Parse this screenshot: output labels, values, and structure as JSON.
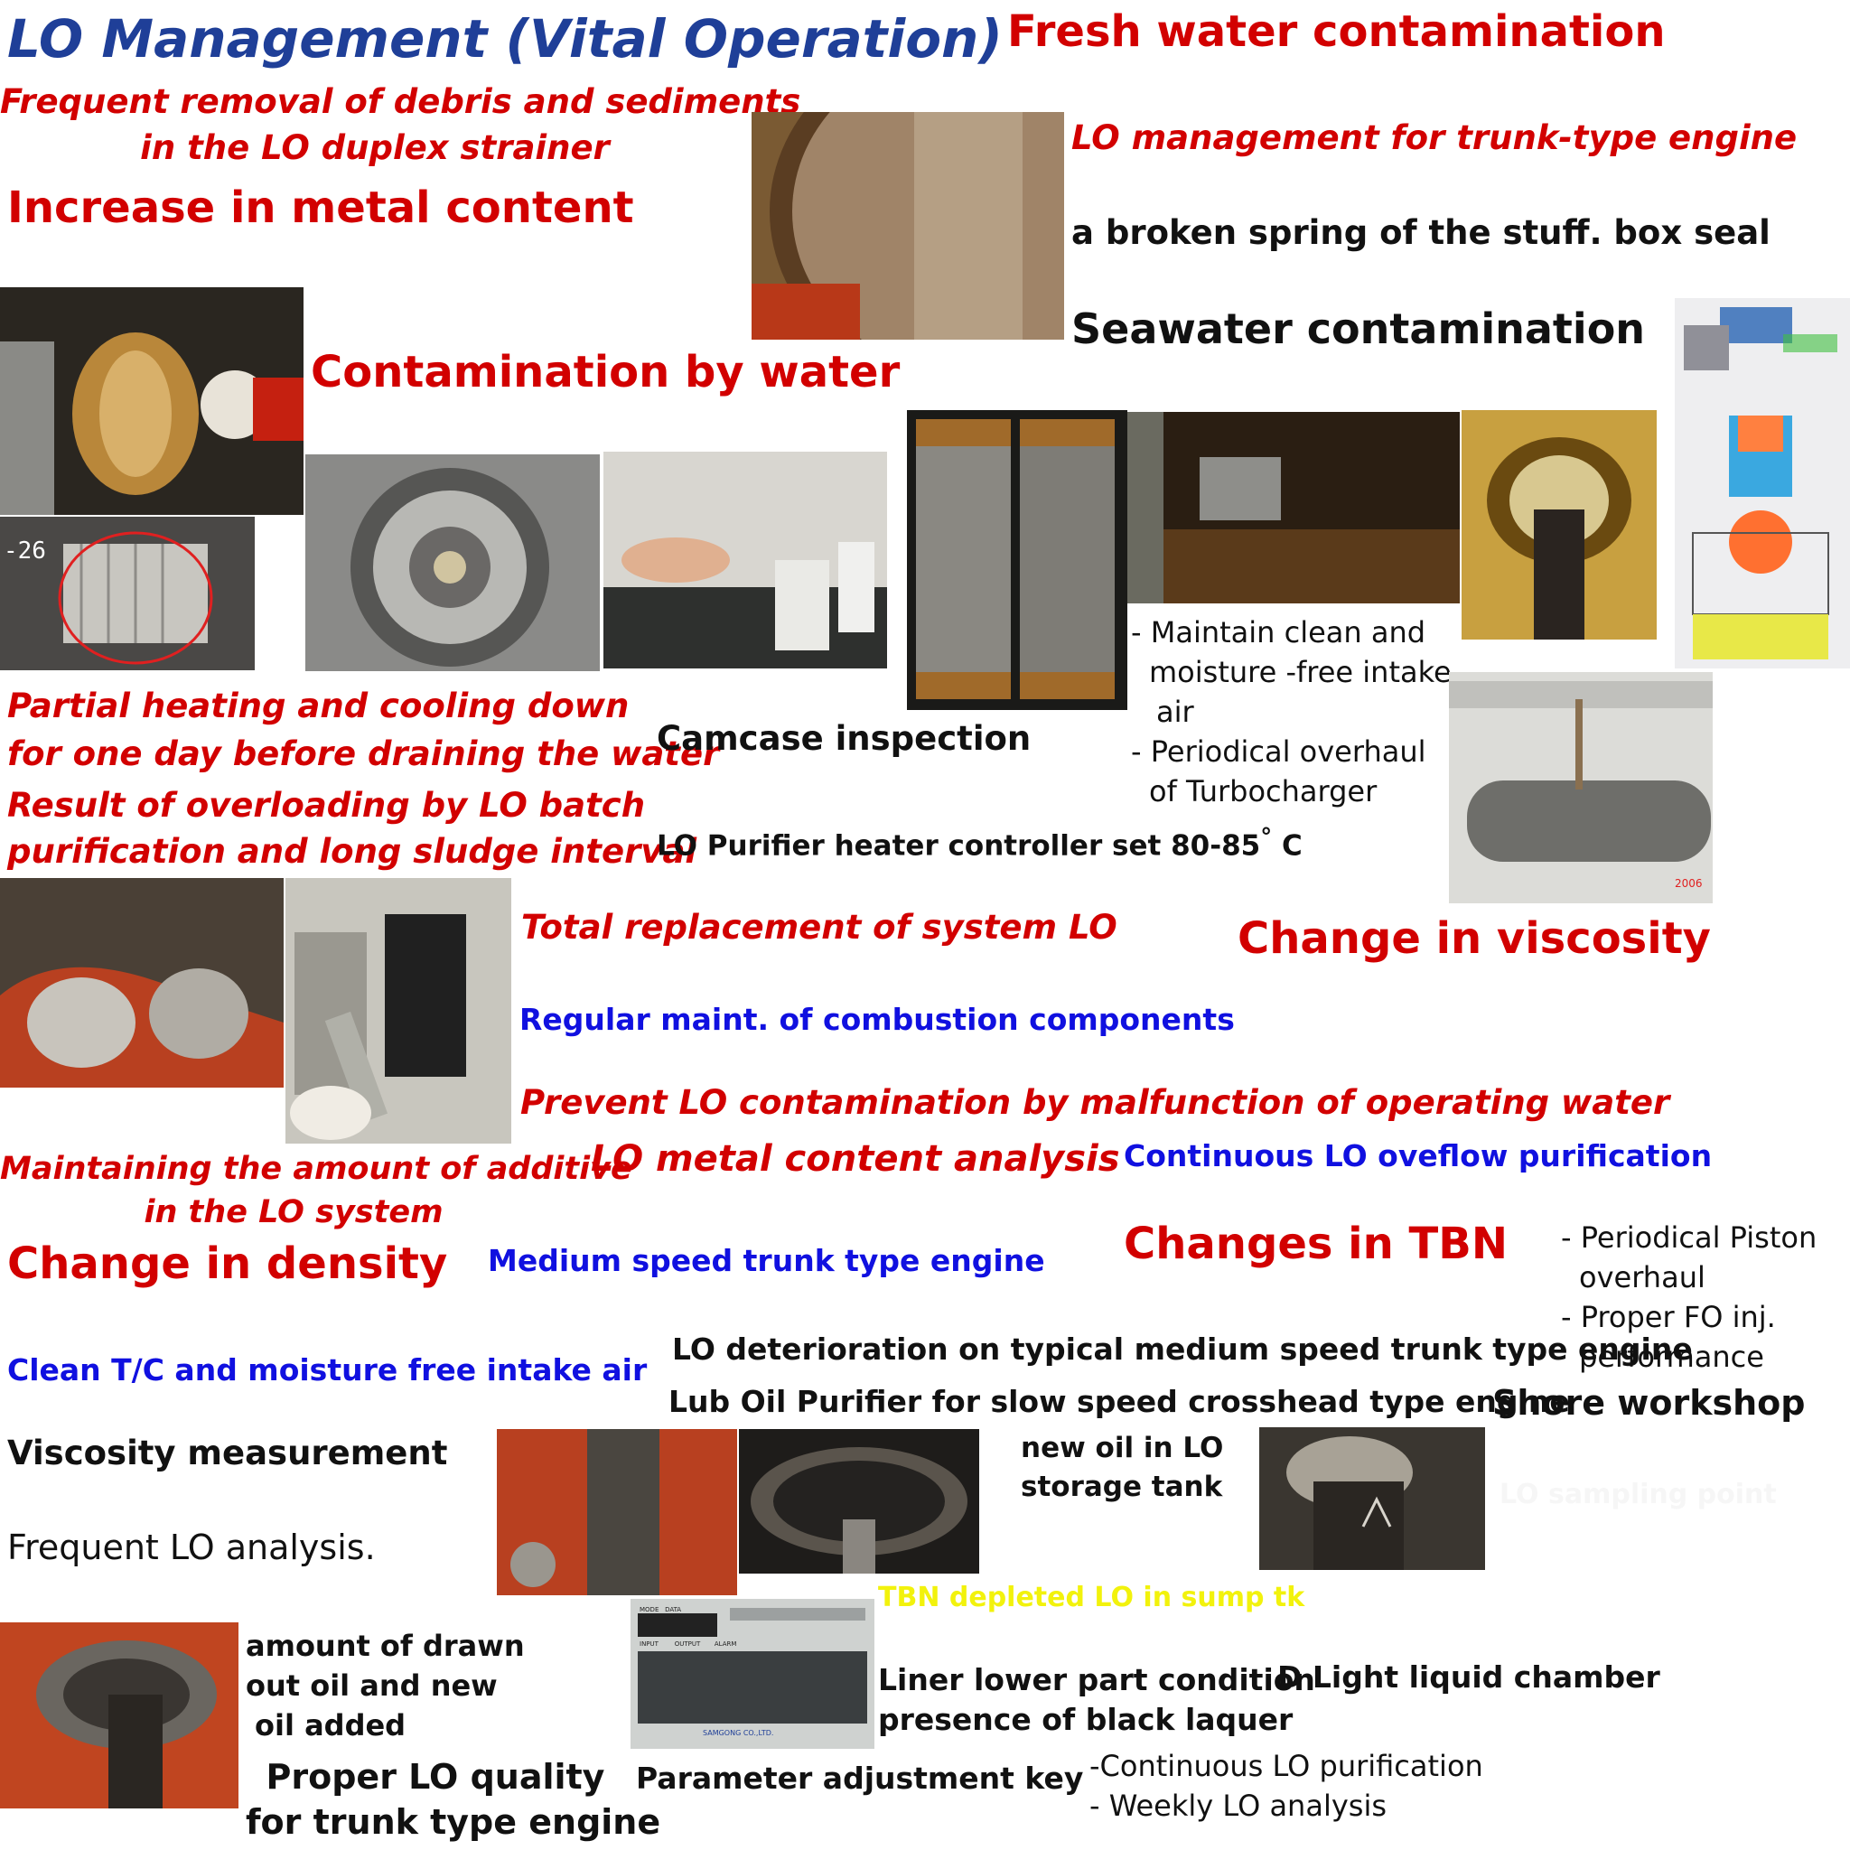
{
  "title": "LO Management (Vital Operation)",
  "labels": {
    "fresh_water": "Fresh water contamination",
    "frequent_removal_1": "Frequent removal of debris and sediments",
    "frequent_removal_2": "in the LO duplex strainer",
    "lo_mgmt_trunk": "LO management for trunk-type engine",
    "increase_metal": "Increase in metal content",
    "broken_spring": "a broken spring of the stuff. box seal",
    "seawater": "Seawater contamination",
    "contam_water": "Contamination by water",
    "maintain_1": "- Maintain clean and",
    "maintain_2": "moisture -free intake",
    "maintain_3": "air",
    "maintain_4": "- Periodical overhaul",
    "maintain_5": "of Turbocharger",
    "partial_1": "Partial heating and cooling down",
    "partial_2": "for one day before draining the water",
    "camcase": "Camcase inspection",
    "result_1": "Result of overloading by LO batch",
    "result_2": "purification and long sludge interval",
    "heater": "LO Purifier heater controller set 80-85",
    "heater_deg": "°",
    "heater_unit": " C",
    "total_replacement": "Total replacement of system LO",
    "change_viscosity": "Change in viscosity",
    "regular_maint": "Regular maint. of combustion components",
    "prevent": "Prevent LO contamination by malfunction of operating water",
    "maintaining_1": "Maintaining the amount of additive",
    "maintaining_2": "in the LO system",
    "metal_analysis": "LO metal content analysis",
    "continuous_overflow": "Continuous LO oveflow purification",
    "change_density": "Change in density",
    "medium_speed": "Medium speed trunk type engine",
    "changes_tbn": "Changes in TBN",
    "piston_1": "- Periodical Piston",
    "piston_2": "overhaul",
    "piston_3": "- Proper FO inj.",
    "piston_4": "performance",
    "deterioration": "LO deterioration on typical medium speed trunk type engine",
    "clean_tc": "Clean T/C  and moisture free intake air",
    "purifier_slow": "Lub Oil Purifier for slow speed crosshead type engine",
    "shore": "Shore workshop",
    "viscosity_meas": "Viscosity  measurement",
    "new_oil_1": "new oil in LO",
    "new_oil_2": "storage tank",
    "lo_ghost": "LO sampling point",
    "frequent_analysis": "Frequent LO analysis.",
    "tbn_depleted": "TBN depleted LO in sump tk",
    "amount_1": "amount of drawn",
    "amount_2": "out oil and  new",
    "amount_3": "oil added",
    "liner_1": "Liner lower part condition",
    "liner_2": "presence of black laquer",
    "light_liquid": "D Light liquid chamber",
    "proper_1": "Proper LO quality",
    "proper_2": "for trunk type engine",
    "param_key": "Parameter adjustment key",
    "cont_1": "-Continuous LO purification",
    "cont_2": "- Weekly LO analysis",
    "photo_mark_1": "-26",
    "photo_mark_2": "2006",
    "panel_brand": "SAMGONG CO.,LTD.",
    "panel_mode": "MODE",
    "panel_data": "DATA",
    "panel_input": "INPUT",
    "panel_output": "OUTPUT",
    "panel_alarm": "ALARM"
  },
  "colors": {
    "title": "#1f3f98",
    "red": "#d20000",
    "blue": "#1010e0",
    "yellow": "#f2f20c"
  }
}
